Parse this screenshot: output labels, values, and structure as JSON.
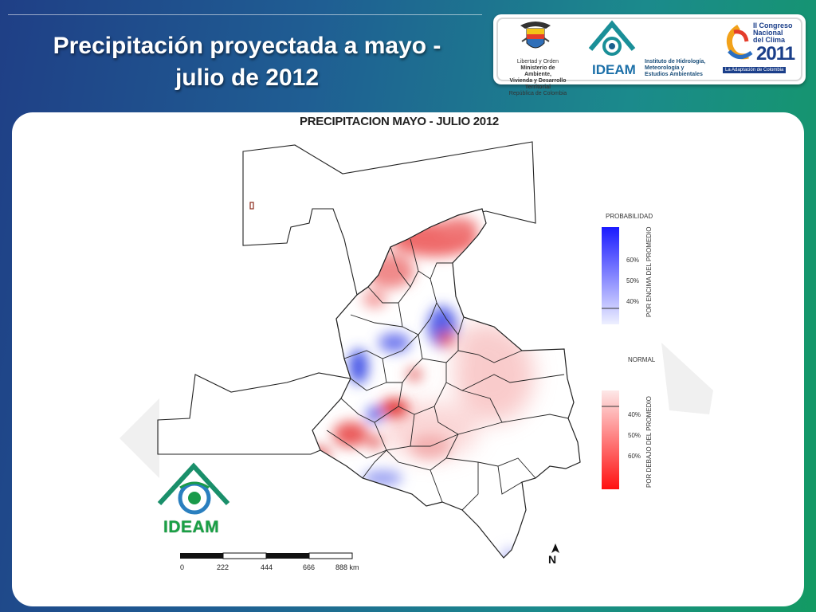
{
  "slide": {
    "title_line1": "Precipitación proyectada a mayo -",
    "title_line2": "julio de 2012"
  },
  "logos": {
    "ministry_lines": [
      "Libertad y Orden",
      "Ministerio de Ambiente,",
      "Vivienda y Desarrollo Territorial",
      "República de Colombia"
    ],
    "ideam_name": "IDEAM",
    "ideam_desc": [
      "Instituto de Hidrología,",
      "Meteorología y",
      "Estudios Ambientales"
    ],
    "congreso_lines": [
      "II Congreso",
      "Nacional",
      "del Clima"
    ],
    "congreso_year": "2011",
    "congreso_tagline": "La Adaptación de Colombia"
  },
  "map": {
    "title": "PRECIPITACION  MAYO - JULIO 2012",
    "legend_above": {
      "header": "PROBABILIDAD",
      "side_label": "POR ENCIMA DEL PROMEDIO",
      "ticks": [
        "60%",
        "50%",
        "40%"
      ],
      "color": "#1a1aff"
    },
    "legend_normal": {
      "label": "NORMAL"
    },
    "legend_below": {
      "side_label": "POR DEBAJO DEL PROMEDIO",
      "ticks": [
        "40%",
        "50%",
        "60%"
      ],
      "color": "#ff1a1a"
    },
    "scale_labels": [
      "0",
      "222",
      "444",
      "666",
      "888 km"
    ],
    "north_label": "N",
    "corner_logo_text": "IDEAM"
  }
}
